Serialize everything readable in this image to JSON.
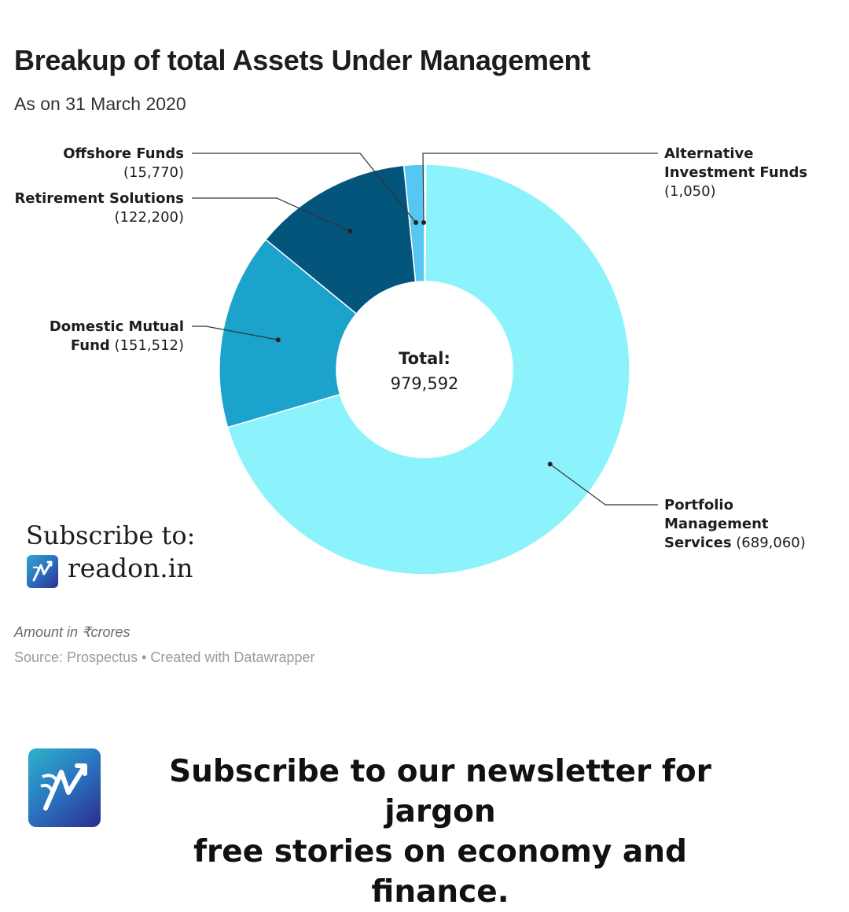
{
  "header": {
    "title": "Breakup of total Assets Under Management",
    "subtitle": "As on 31 March 2020"
  },
  "chart_data": {
    "type": "pie",
    "variant": "donut",
    "title": "Breakup of total Assets Under Management",
    "subtitle": "As on 31 March 2020",
    "unit_note": "Amount in ₹crores",
    "center_label": {
      "title": "Total:",
      "value": "979,592"
    },
    "slices": [
      {
        "id": "aif",
        "name_lines": [
          "Alternative",
          "Investment Funds"
        ],
        "value": 1050,
        "value_label": "(1,050)",
        "color": "#5bcbf0"
      },
      {
        "id": "pms",
        "name_lines": [
          "Portfolio",
          "Management",
          "Services"
        ],
        "value": 689060,
        "value_label": "(689,060)",
        "color": "#8cf3fd"
      },
      {
        "id": "dmf",
        "name_lines": [
          "Domestic Mutual",
          "Fund"
        ],
        "value": 151512,
        "value_label": "(151,512)",
        "color": "#1ba3cc"
      },
      {
        "id": "rs",
        "name_lines": [
          "Retirement Solutions"
        ],
        "value": 122200,
        "value_label": "(122,200)",
        "color": "#03557c"
      },
      {
        "id": "off",
        "name_lines": [
          "Offshore Funds"
        ],
        "value": 15770,
        "value_label": "(15,770)",
        "color": "#55c7f0"
      }
    ]
  },
  "footer": {
    "subscribe_label": "Subscribe to:",
    "brand_name": "readon.in",
    "amount_note": "Amount in ₹crores",
    "source": "Source: Prospectus • Created with Datawrapper"
  },
  "cta": {
    "line1": "Subscribe to our newsletter for jargon",
    "line2": "free stories on economy and finance."
  }
}
